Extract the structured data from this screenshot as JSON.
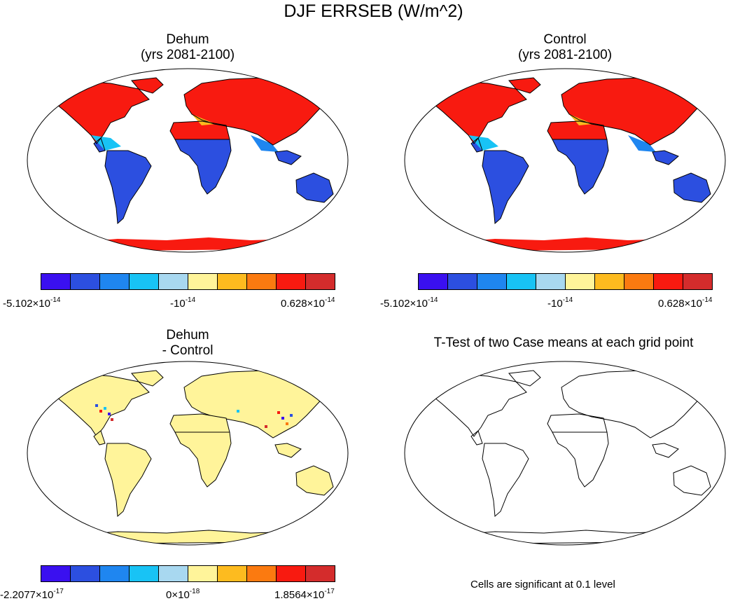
{
  "title": "DJF ERRSEB (W/m^2)",
  "panels": {
    "dehum": {
      "title_line1": "Dehum",
      "title_line2": "(yrs 2081-2100)"
    },
    "control": {
      "title_line1": "Control",
      "title_line2": "(yrs 2081-2100)"
    },
    "diff": {
      "title_line1": "Dehum",
      "title_line2": "- Control"
    },
    "ttest": {
      "title": "T-Test of two Case means at each grid point",
      "note": "Cells are significant at 0.1 level"
    }
  },
  "colorbars": {
    "colors": [
      "#3a10f0",
      "#2c4fe0",
      "#1f86f0",
      "#18c3f5",
      "#a8d8f0",
      "#fff49a",
      "#fdbb1f",
      "#fb7a10",
      "#f81a10",
      "#d42c2c"
    ],
    "dehum": {
      "min": "-5.102×10",
      "min_exp": "-14",
      "mid": "-10",
      "mid_exp": "-14",
      "max": "0.628×10",
      "max_exp": "-14"
    },
    "control": {
      "min": "-5.102×10",
      "min_exp": "-14",
      "mid": "-10",
      "mid_exp": "-14",
      "max": "0.628×10",
      "max_exp": "-14"
    },
    "diff": {
      "min": "-2.2077×10",
      "min_exp": "-17",
      "mid": "0×10",
      "mid_exp": "-18",
      "max": "1.8564×10",
      "max_exp": "-17"
    }
  },
  "map_colors": {
    "north": "#f81a10",
    "south": "#2c4fe0",
    "zero": "#fff49a",
    "outline": "#000000"
  }
}
